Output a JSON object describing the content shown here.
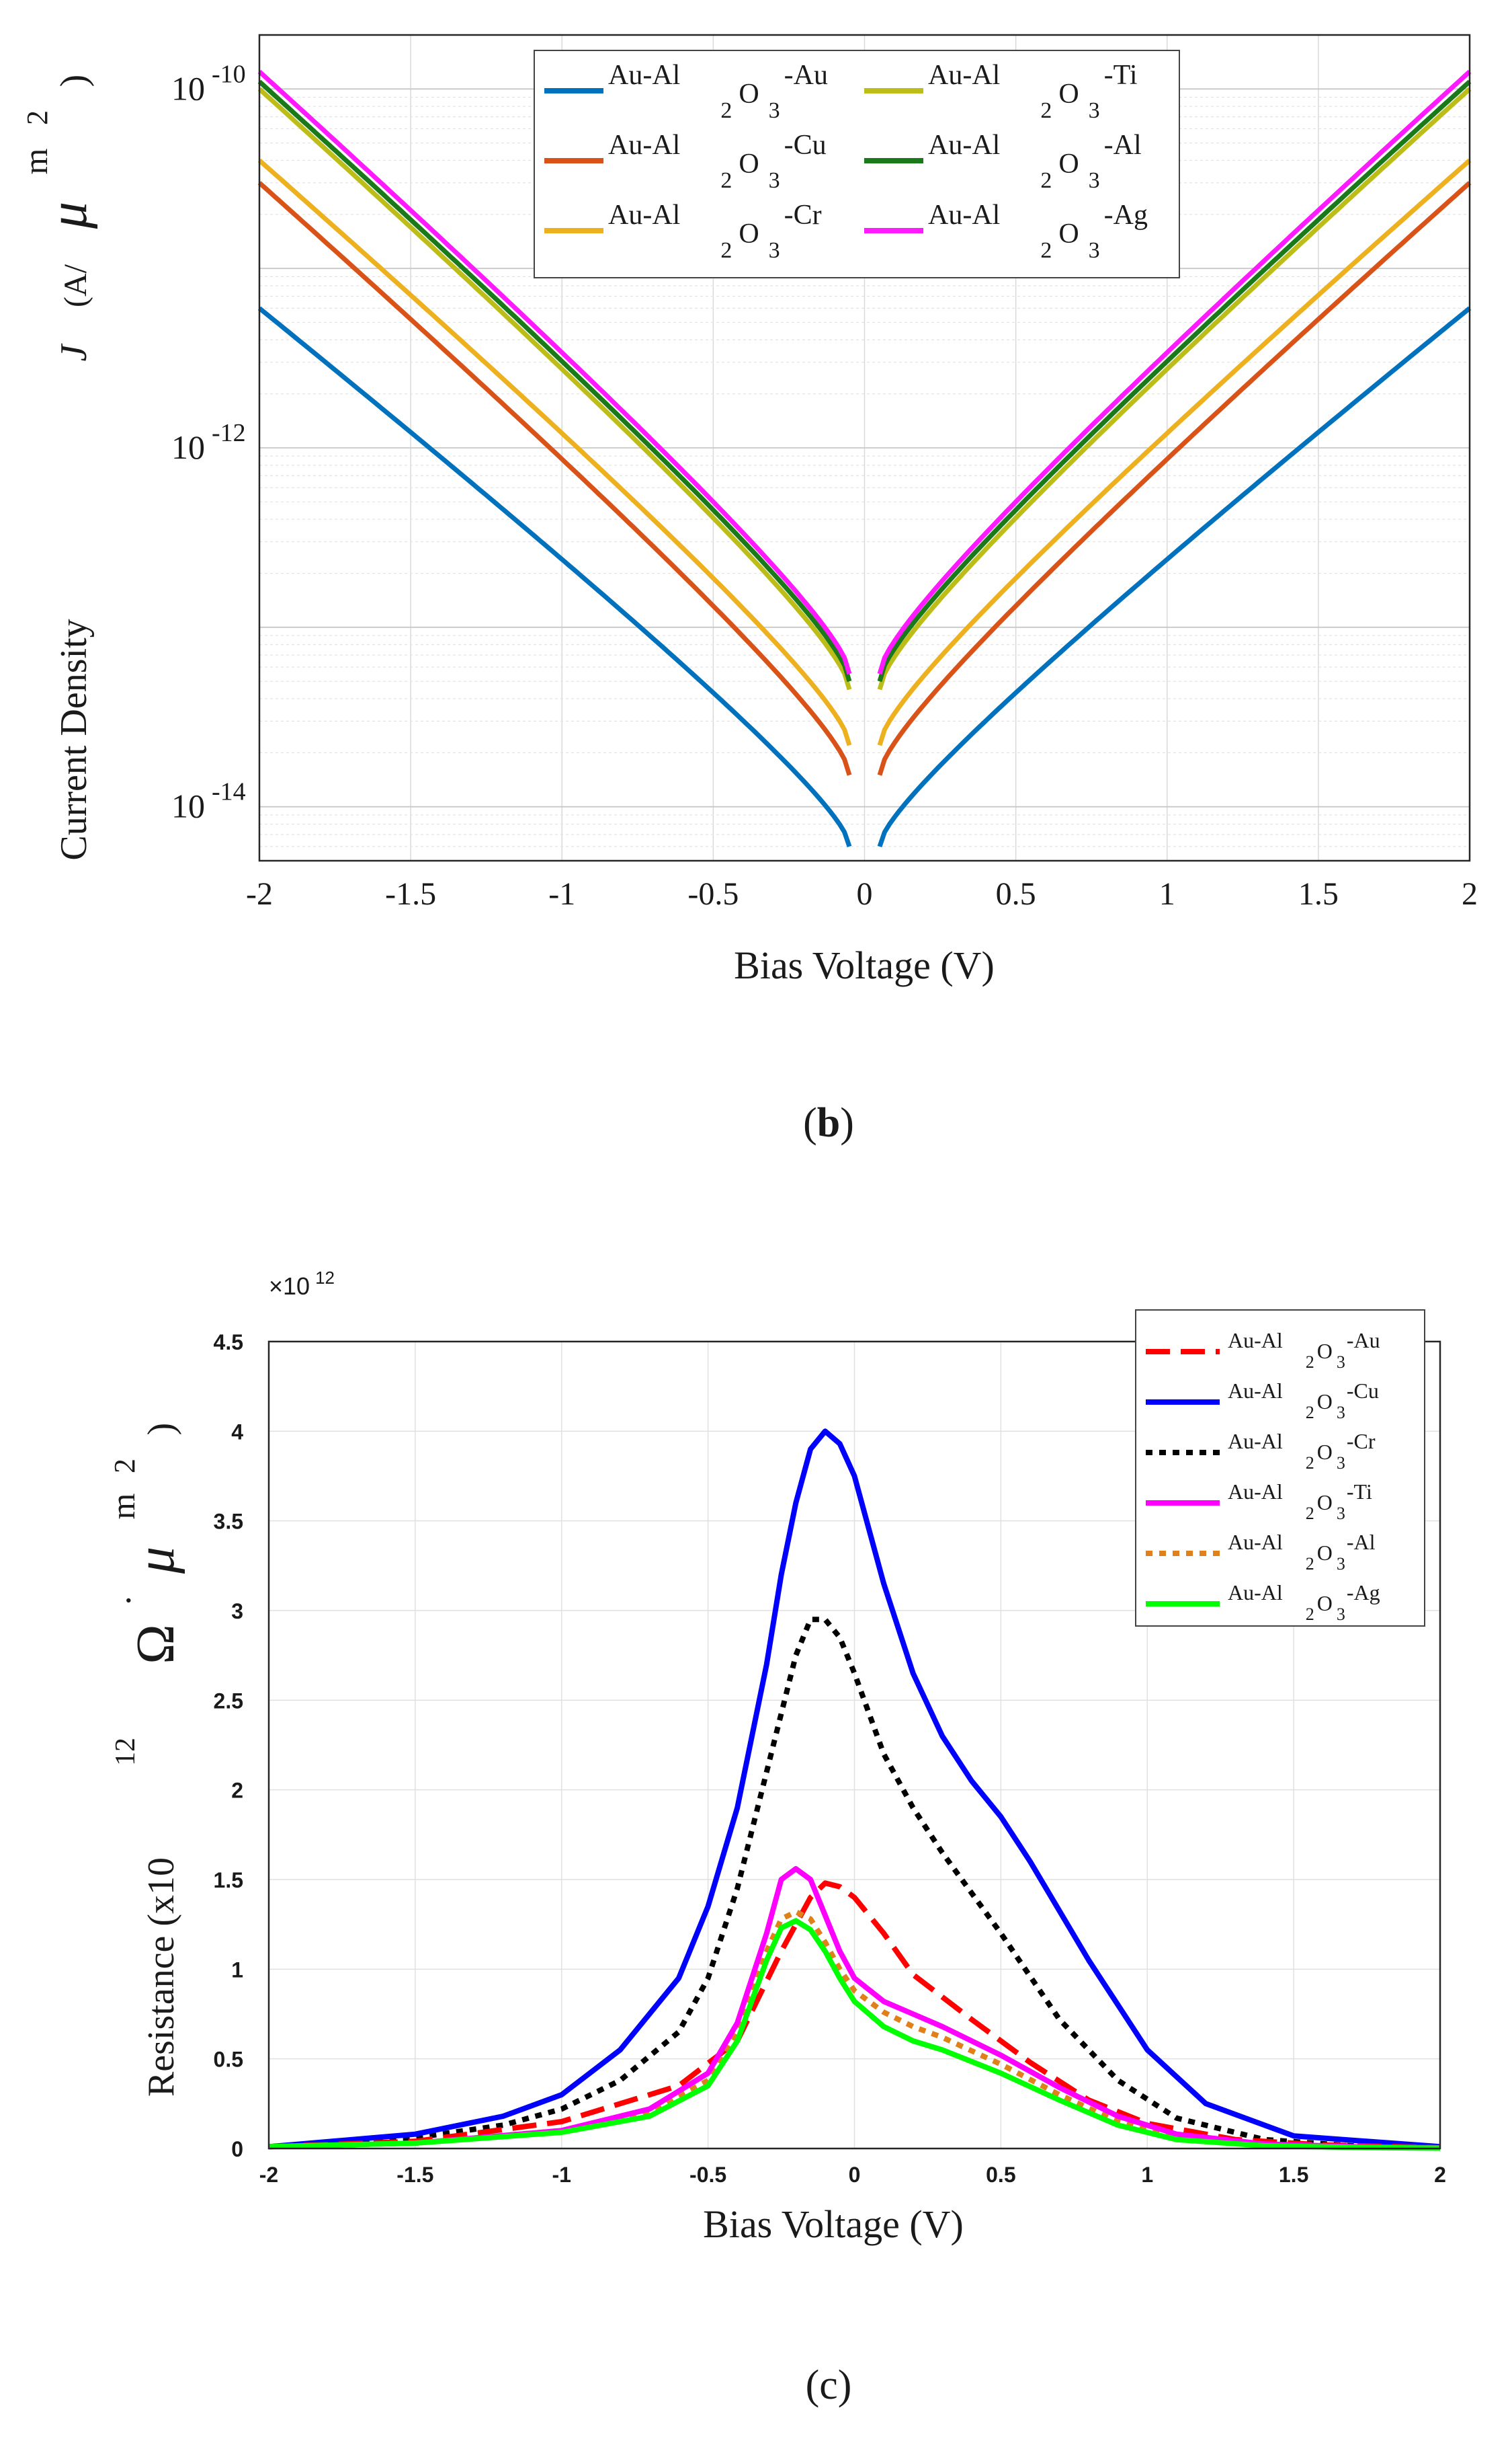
{
  "colors": {
    "b": {
      "Au": "#0072BD",
      "Cu": "#D95319",
      "Cr": "#EDB120",
      "Ti": "#BDBD1A",
      "Al": "#1A7A1A",
      "Ag": "#FF1AFF"
    },
    "c": {
      "Au": "#FF0000",
      "Cu": "#0000FF",
      "Cr": "#000000",
      "Ti": "#FF00FF",
      "Al": "#E0801A",
      "Ag": "#00FF00"
    }
  },
  "chart_data": [
    {
      "id": "b",
      "type": "line",
      "panel_label": "b",
      "xlabel": "Bias Voltage (V)",
      "ylabel_main": "Current Density",
      "ylabel_symbol": "J",
      "ylabel_unit_prefix": "(A/",
      "ylabel_unit_mu": "μ",
      "ylabel_unit_m": "m",
      "ylabel_unit_exp": "2",
      "ylabel_unit_close": ")",
      "x_scale": "linear",
      "y_scale": "log",
      "xlim": [
        -2,
        2
      ],
      "ylim": [
        5e-15,
        2e-10
      ],
      "grid": true,
      "legend_position": "top-center",
      "x_ticks": [
        -2,
        -1.5,
        -1,
        -0.5,
        0,
        0.5,
        1,
        1.5,
        2
      ],
      "x_tick_labels": [
        "-2",
        "-1.5",
        "-1",
        "-0.5",
        "0",
        "0.5",
        "1",
        "1.5",
        "2"
      ],
      "y_ticks": [
        -14,
        -12,
        -10
      ],
      "y_tick_base": "10",
      "y_tick_exponents": [
        "-14",
        "-12",
        "-10"
      ],
      "legend_prefix": "Au-Al",
      "legend_sub": "2",
      "legend_o": "O",
      "legend_sub3": "3",
      "series": [
        {
          "name": "Au-Al2O3-Au",
          "label_suffix": "-Au",
          "metal": "Au",
          "values_at_2V": 6e-12,
          "values_near_0": 6e-15
        },
        {
          "name": "Au-Al2O3-Cu",
          "label_suffix": "-Cu",
          "metal": "Cu",
          "values_at_2V": 3e-11,
          "values_near_0": 1.5e-14
        },
        {
          "name": "Au-Al2O3-Cr",
          "label_suffix": "-Cr",
          "metal": "Cr",
          "values_at_2V": 4e-11,
          "values_near_0": 2.2e-14
        },
        {
          "name": "Au-Al2O3-Ti",
          "label_suffix": "-Ti",
          "metal": "Ti",
          "values_at_2V": 1e-10,
          "values_near_0": 4.5e-14
        },
        {
          "name": "Au-Al2O3-Al",
          "label_suffix": "-Al",
          "metal": "Al",
          "values_at_2V": 1.1e-10,
          "values_near_0": 5e-14
        },
        {
          "name": "Au-Al2O3-Ag",
          "label_suffix": "-Ag",
          "metal": "Ag",
          "values_at_2V": 1.25e-10,
          "values_near_0": 5.5e-14
        }
      ]
    },
    {
      "id": "c",
      "type": "line",
      "panel_label": "c",
      "xlabel": "Bias Voltage (V)",
      "ylabel_main": "Resistance (x10",
      "ylabel_exp12": "12",
      "ylabel_omega": "Ω",
      "ylabel_dot": "˙",
      "ylabel_mu": "μ",
      "ylabel_m": "m",
      "ylabel_exp2": "2",
      "ylabel_close": ")",
      "multiplier": "×10",
      "multiplier_exp": "12",
      "xlim": [
        -2,
        2
      ],
      "ylim": [
        0,
        4.5
      ],
      "grid": true,
      "legend_position": "top-right",
      "x_ticks": [
        -2,
        -1.5,
        -1,
        -0.5,
        0,
        0.5,
        1,
        1.5,
        2
      ],
      "x_tick_labels": [
        "-2",
        "-1.5",
        "-1",
        "-0.5",
        "0",
        "0.5",
        "1",
        "1.5",
        "2"
      ],
      "y_ticks": [
        0,
        0.5,
        1,
        1.5,
        2,
        2.5,
        3,
        3.5,
        4,
        4.5
      ],
      "y_tick_labels": [
        "0",
        "0.5",
        "1",
        "1.5",
        "2",
        "2.5",
        "3",
        "3.5",
        "4",
        "4.5"
      ],
      "legend_prefix": "Au-Al",
      "legend_sub": "2",
      "legend_o": "O",
      "legend_sub3": "3",
      "series": [
        {
          "name": "Au-Al2O3-Au",
          "label_suffix": "-Au",
          "metal": "Au",
          "style": "dashed",
          "x": [
            -2,
            -1.5,
            -1,
            -0.6,
            -0.4,
            -0.25,
            -0.15,
            -0.1,
            -0.05,
            0,
            0.1,
            0.2,
            0.4,
            0.6,
            0.8,
            1,
            1.3,
            1.6,
            2
          ],
          "y": [
            0.01,
            0.04,
            0.15,
            0.35,
            0.6,
            1.1,
            1.4,
            1.48,
            1.46,
            1.4,
            1.2,
            0.97,
            0.72,
            0.48,
            0.27,
            0.14,
            0.05,
            0.02,
            0.005
          ]
        },
        {
          "name": "Au-Al2O3-Cu",
          "label_suffix": "-Cu",
          "metal": "Cu",
          "style": "solid",
          "x": [
            -2,
            -1.5,
            -1.2,
            -1,
            -0.8,
            -0.6,
            -0.5,
            -0.4,
            -0.3,
            -0.25,
            -0.2,
            -0.15,
            -0.1,
            -0.05,
            0,
            0.1,
            0.2,
            0.3,
            0.4,
            0.5,
            0.6,
            0.8,
            1,
            1.2,
            1.5,
            2
          ],
          "y": [
            0.01,
            0.08,
            0.18,
            0.3,
            0.55,
            0.95,
            1.35,
            1.9,
            2.7,
            3.2,
            3.6,
            3.9,
            4.0,
            3.93,
            3.75,
            3.15,
            2.65,
            2.3,
            2.05,
            1.85,
            1.6,
            1.05,
            0.55,
            0.25,
            0.07,
            0.01
          ]
        },
        {
          "name": "Au-Al2O3-Cr",
          "label_suffix": "-Cr",
          "metal": "Cr",
          "style": "dotted",
          "x": [
            -2,
            -1.5,
            -1.2,
            -1,
            -0.8,
            -0.6,
            -0.5,
            -0.4,
            -0.3,
            -0.2,
            -0.15,
            -0.1,
            -0.05,
            0,
            0.1,
            0.2,
            0.3,
            0.5,
            0.7,
            0.9,
            1.1,
            1.4,
            1.7,
            2
          ],
          "y": [
            0.01,
            0.06,
            0.13,
            0.22,
            0.38,
            0.65,
            0.95,
            1.45,
            2.1,
            2.75,
            2.95,
            2.95,
            2.85,
            2.65,
            2.2,
            1.9,
            1.65,
            1.2,
            0.72,
            0.38,
            0.17,
            0.05,
            0.015,
            0.005
          ]
        },
        {
          "name": "Au-Al2O3-Ti",
          "label_suffix": "-Ti",
          "metal": "Ti",
          "style": "solid",
          "x": [
            -2,
            -1.5,
            -1,
            -0.7,
            -0.5,
            -0.4,
            -0.3,
            -0.25,
            -0.2,
            -0.15,
            -0.1,
            -0.05,
            0,
            0.1,
            0.2,
            0.3,
            0.5,
            0.7,
            0.9,
            1.1,
            1.4,
            1.7,
            2
          ],
          "y": [
            0.01,
            0.03,
            0.1,
            0.22,
            0.42,
            0.7,
            1.2,
            1.5,
            1.56,
            1.5,
            1.3,
            1.1,
            0.95,
            0.82,
            0.75,
            0.68,
            0.52,
            0.34,
            0.18,
            0.08,
            0.025,
            0.01,
            0.004
          ]
        },
        {
          "name": "Au-Al2O3-Al",
          "label_suffix": "-Al",
          "metal": "Al",
          "style": "dotted",
          "x": [
            -2,
            -1.5,
            -1,
            -0.7,
            -0.5,
            -0.4,
            -0.3,
            -0.25,
            -0.2,
            -0.15,
            -0.1,
            -0.05,
            0,
            0.1,
            0.2,
            0.3,
            0.5,
            0.7,
            0.9,
            1.1,
            1.4,
            1.7,
            2
          ],
          "y": [
            0.01,
            0.03,
            0.1,
            0.2,
            0.38,
            0.65,
            1.1,
            1.28,
            1.32,
            1.28,
            1.15,
            1.0,
            0.88,
            0.76,
            0.68,
            0.62,
            0.47,
            0.3,
            0.15,
            0.06,
            0.02,
            0.008,
            0.003
          ]
        },
        {
          "name": "Au-Al2O3-Ag",
          "label_suffix": "-Ag",
          "metal": "Ag",
          "style": "solid",
          "x": [
            -2,
            -1.5,
            -1,
            -0.7,
            -0.5,
            -0.4,
            -0.3,
            -0.25,
            -0.2,
            -0.15,
            -0.1,
            -0.05,
            0,
            0.1,
            0.2,
            0.3,
            0.5,
            0.7,
            0.9,
            1.1,
            1.4,
            1.7,
            2
          ],
          "y": [
            0.01,
            0.03,
            0.09,
            0.18,
            0.35,
            0.6,
            1.05,
            1.23,
            1.27,
            1.22,
            1.1,
            0.95,
            0.82,
            0.68,
            0.6,
            0.55,
            0.42,
            0.27,
            0.13,
            0.05,
            0.015,
            0.006,
            0.002
          ]
        }
      ]
    }
  ]
}
